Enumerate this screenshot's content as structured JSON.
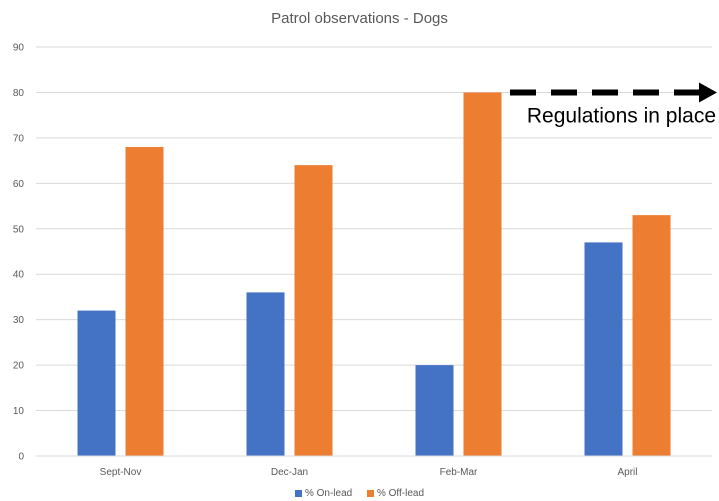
{
  "chart_data": {
    "type": "bar",
    "title": "Patrol observations - Dogs",
    "categories": [
      "Sept-Nov",
      "Dec-Jan",
      "Feb-Mar",
      "April"
    ],
    "series": [
      {
        "name": "% On-lead",
        "values": [
          32,
          36,
          20,
          47
        ],
        "color": "#4472C4"
      },
      {
        "name": "% Off-lead",
        "values": [
          68,
          64,
          80,
          53
        ],
        "color": "#ED7D31"
      }
    ],
    "ylim": [
      0,
      90
    ],
    "yticks": [
      0,
      10,
      20,
      30,
      40,
      50,
      60,
      70,
      80,
      90
    ],
    "grid": true,
    "legend_position": "bottom",
    "annotation": {
      "text": "Regulations in place",
      "arrow_style": "dashed",
      "arrow_direction": "right",
      "arrow_at_value": 80
    }
  }
}
